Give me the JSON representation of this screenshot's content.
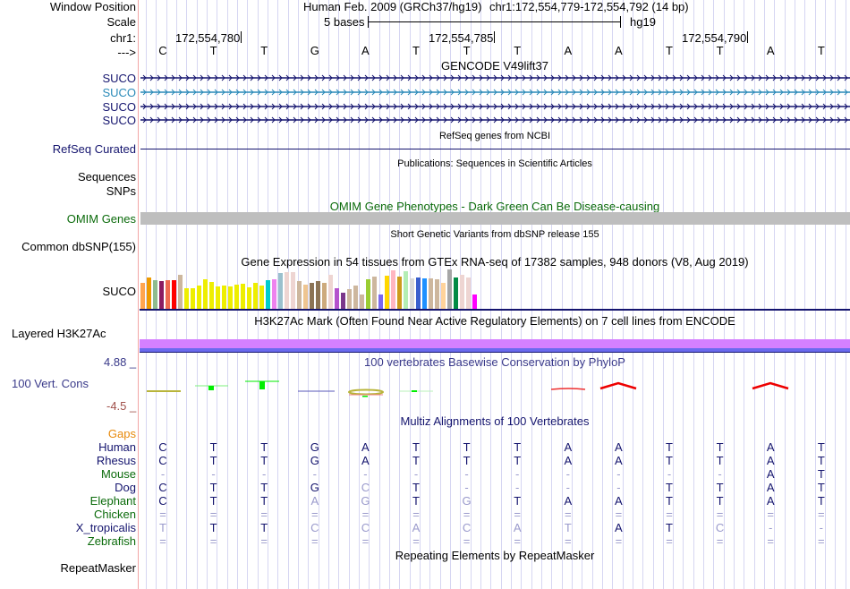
{
  "header": {
    "window_position_label": "Window Position",
    "scale_label": "Scale",
    "chrom_label": "chr1:",
    "strand_label": "--->",
    "assembly": "Human Feb. 2009 (GRCh37/hg19)",
    "position": "chr1:172,554,779-172,554,792 (14 bp)",
    "scale_text": "5 bases",
    "scale_db": "hg19",
    "ticks": [
      "172,554,780",
      "172,554,785",
      "172,554,790"
    ]
  },
  "bases": [
    "C",
    "T",
    "T",
    "G",
    "A",
    "T",
    "T",
    "T",
    "A",
    "A",
    "T",
    "T",
    "A",
    "T"
  ],
  "tracks": {
    "gencode": {
      "title": "GENCODE V49lift37",
      "items": [
        {
          "label": "SUCO",
          "color": "#14146e"
        },
        {
          "label": "SUCO",
          "color": "#2a8ab8"
        },
        {
          "label": "SUCO",
          "color": "#14146e"
        },
        {
          "label": "SUCO",
          "color": "#14146e"
        }
      ]
    },
    "refseq": {
      "title": "RefSeq genes from NCBI",
      "label": "RefSeq Curated",
      "color": "#14146e"
    },
    "publications": {
      "title": "Publications: Sequences in Scientific Articles",
      "label_line1": "Sequences",
      "label_line2": "SNPs"
    },
    "omim": {
      "title": "OMIM Gene Phenotypes - Dark Green Can Be Disease-causing",
      "label": "OMIM Genes",
      "bar_color": "#bebebe"
    },
    "dbsnp": {
      "title": "Short Genetic Variants from dbSNP release 155",
      "label": "Common dbSNP(155)"
    },
    "gtex": {
      "title": "Gene Expression in 54 tissues from GTEx RNA-seq of 17382 samples, 948 donors (V8, Aug 2019)",
      "label": "SUCO",
      "bars": [
        {
          "color": "#ffa54f",
          "v": 0.66
        },
        {
          "color": "#ee9a00",
          "v": 0.8
        },
        {
          "color": "#8fbc8f",
          "v": 0.72
        },
        {
          "color": "#8b1c62",
          "v": 0.7
        },
        {
          "color": "#ee6a50",
          "v": 0.72
        },
        {
          "color": "#ff0000",
          "v": 0.72
        },
        {
          "color": "#cdb79e",
          "v": 0.86
        },
        {
          "color": "#eeee00",
          "v": 0.52
        },
        {
          "color": "#eeee00",
          "v": 0.52
        },
        {
          "color": "#eeee00",
          "v": 0.6
        },
        {
          "color": "#eeee00",
          "v": 0.74
        },
        {
          "color": "#eeee00",
          "v": 0.68
        },
        {
          "color": "#eeee00",
          "v": 0.56
        },
        {
          "color": "#eeee00",
          "v": 0.6
        },
        {
          "color": "#eeee00",
          "v": 0.56
        },
        {
          "color": "#eeee00",
          "v": 0.62
        },
        {
          "color": "#eeee00",
          "v": 0.64
        },
        {
          "color": "#eeee00",
          "v": 0.54
        },
        {
          "color": "#eeee00",
          "v": 0.66
        },
        {
          "color": "#eeee00",
          "v": 0.58
        },
        {
          "color": "#00cdcd",
          "v": 0.72
        },
        {
          "color": "#ee82ee",
          "v": 0.76
        },
        {
          "color": "#9ac0cd",
          "v": 0.9
        },
        {
          "color": "#eed5d2",
          "v": 0.94
        },
        {
          "color": "#eed5d2",
          "v": 0.94
        },
        {
          "color": "#cdb79e",
          "v": 0.7
        },
        {
          "color": "#eec591",
          "v": 0.62
        },
        {
          "color": "#8b7355",
          "v": 0.66
        },
        {
          "color": "#8b7355",
          "v": 0.7
        },
        {
          "color": "#cdaa7d",
          "v": 0.66
        },
        {
          "color": "#eed5d2",
          "v": 0.86
        },
        {
          "color": "#b452cd",
          "v": 0.52
        },
        {
          "color": "#7a378b",
          "v": 0.4
        },
        {
          "color": "#cdb79e",
          "v": 0.5
        },
        {
          "color": "#cdb79e",
          "v": 0.6
        },
        {
          "color": "#cdb79e",
          "v": 0.36
        },
        {
          "color": "#9acd32",
          "v": 0.76
        },
        {
          "color": "#cdb79e",
          "v": 0.82
        },
        {
          "color": "#7a67ee",
          "v": 0.36
        },
        {
          "color": "#ffd700",
          "v": 0.84
        },
        {
          "color": "#ffb6c1",
          "v": 0.98
        },
        {
          "color": "#cd9b1d",
          "v": 0.82
        },
        {
          "color": "#b4eeb4",
          "v": 0.96
        },
        {
          "color": "#d9d9d9",
          "v": 0.78
        },
        {
          "color": "#3a5fcd",
          "v": 0.8
        },
        {
          "color": "#1e90ff",
          "v": 0.78
        },
        {
          "color": "#cdb79e",
          "v": 0.78
        },
        {
          "color": "#cdb79e",
          "v": 0.74
        },
        {
          "color": "#ffd39b",
          "v": 0.66
        },
        {
          "color": "#a6a6a6",
          "v": 1.0
        },
        {
          "color": "#008b45",
          "v": 0.8
        },
        {
          "color": "#eed5d2",
          "v": 0.86
        },
        {
          "color": "#eed5d2",
          "v": 0.8
        },
        {
          "color": "#ff00ff",
          "v": 0.36
        }
      ]
    },
    "h3k27ac": {
      "title": "H3K27Ac Mark (Often Found Near Active Regulatory Elements) on 7 cell lines from ENCODE",
      "label": "Layered H3K27Ac",
      "top_color": "#d580ff",
      "bottom_color": "#6a6aee"
    },
    "phylop": {
      "title": "100 vertebrates Basewise Conservation by PhyloP",
      "label": "100 Vert. Cons",
      "max_label": "4.88 _",
      "min_label": "-4.5 _"
    },
    "multiz": {
      "title": "Multiz Alignments of 100 Vertebrates",
      "gaps_label": "Gaps",
      "species": [
        {
          "name": "Human",
          "color": "#14146e",
          "seq": [
            "C",
            "T",
            "T",
            "G",
            "A",
            "T",
            "T",
            "T",
            "A",
            "A",
            "T",
            "T",
            "A",
            "T"
          ],
          "faint": [
            0,
            0,
            0,
            0,
            0,
            0,
            0,
            0,
            0,
            0,
            0,
            0,
            0,
            0
          ]
        },
        {
          "name": "Rhesus",
          "color": "#14146e",
          "seq": [
            "C",
            "T",
            "T",
            "G",
            "A",
            "T",
            "T",
            "T",
            "A",
            "A",
            "T",
            "T",
            "A",
            "T"
          ],
          "faint": [
            0,
            0,
            0,
            0,
            0,
            0,
            0,
            0,
            0,
            0,
            0,
            0,
            0,
            0
          ]
        },
        {
          "name": "Mouse",
          "color": "#0b6b0b",
          "seq": [
            "-",
            "-",
            "-",
            "-",
            "-",
            "-",
            "-",
            "-",
            "-",
            "-",
            "-",
            "-",
            "A",
            "T"
          ],
          "faint": [
            1,
            1,
            1,
            1,
            1,
            1,
            1,
            1,
            1,
            1,
            1,
            1,
            0,
            0
          ]
        },
        {
          "name": "Dog",
          "color": "#14146e",
          "seq": [
            "C",
            "T",
            "T",
            "G",
            "C",
            "T",
            "-",
            "-",
            "-",
            "-",
            "T",
            "T",
            "A",
            "T"
          ],
          "faint": [
            0,
            0,
            0,
            0,
            1,
            0,
            1,
            1,
            1,
            1,
            0,
            0,
            0,
            0
          ]
        },
        {
          "name": "Elephant",
          "color": "#0b6b0b",
          "seq": [
            "C",
            "T",
            "T",
            "A",
            "G",
            "T",
            "G",
            "T",
            "A",
            "A",
            "T",
            "T",
            "A",
            "T"
          ],
          "faint": [
            0,
            0,
            0,
            1,
            1,
            0,
            1,
            0,
            0,
            0,
            0,
            0,
            0,
            0
          ]
        },
        {
          "name": "Chicken",
          "color": "#0b6b0b",
          "seq": [
            "=",
            "=",
            "=",
            "=",
            "=",
            "=",
            "=",
            "=",
            "=",
            "=",
            "=",
            "=",
            "=",
            "="
          ],
          "faint": [
            1,
            1,
            1,
            1,
            1,
            1,
            1,
            1,
            1,
            1,
            1,
            1,
            1,
            1
          ]
        },
        {
          "name": "X_tropicalis",
          "color": "#14146e",
          "seq": [
            "T",
            "T",
            "T",
            "C",
            "C",
            "A",
            "C",
            "A",
            "T",
            "A",
            "T",
            "C",
            "-",
            "-"
          ],
          "faint": [
            1,
            0,
            0,
            1,
            1,
            1,
            1,
            1,
            1,
            0,
            0,
            1,
            1,
            1
          ]
        },
        {
          "name": "Zebrafish",
          "color": "#0b6b0b",
          "seq": [
            "=",
            "=",
            "=",
            "=",
            "=",
            "=",
            "=",
            "=",
            "=",
            "=",
            "=",
            "=",
            "=",
            "="
          ],
          "faint": [
            1,
            1,
            1,
            1,
            1,
            1,
            1,
            1,
            1,
            1,
            1,
            1,
            1,
            1
          ]
        }
      ]
    },
    "repeatmasker": {
      "title": "Repeating Elements by RepeatMasker",
      "label": "RepeatMasker"
    }
  }
}
